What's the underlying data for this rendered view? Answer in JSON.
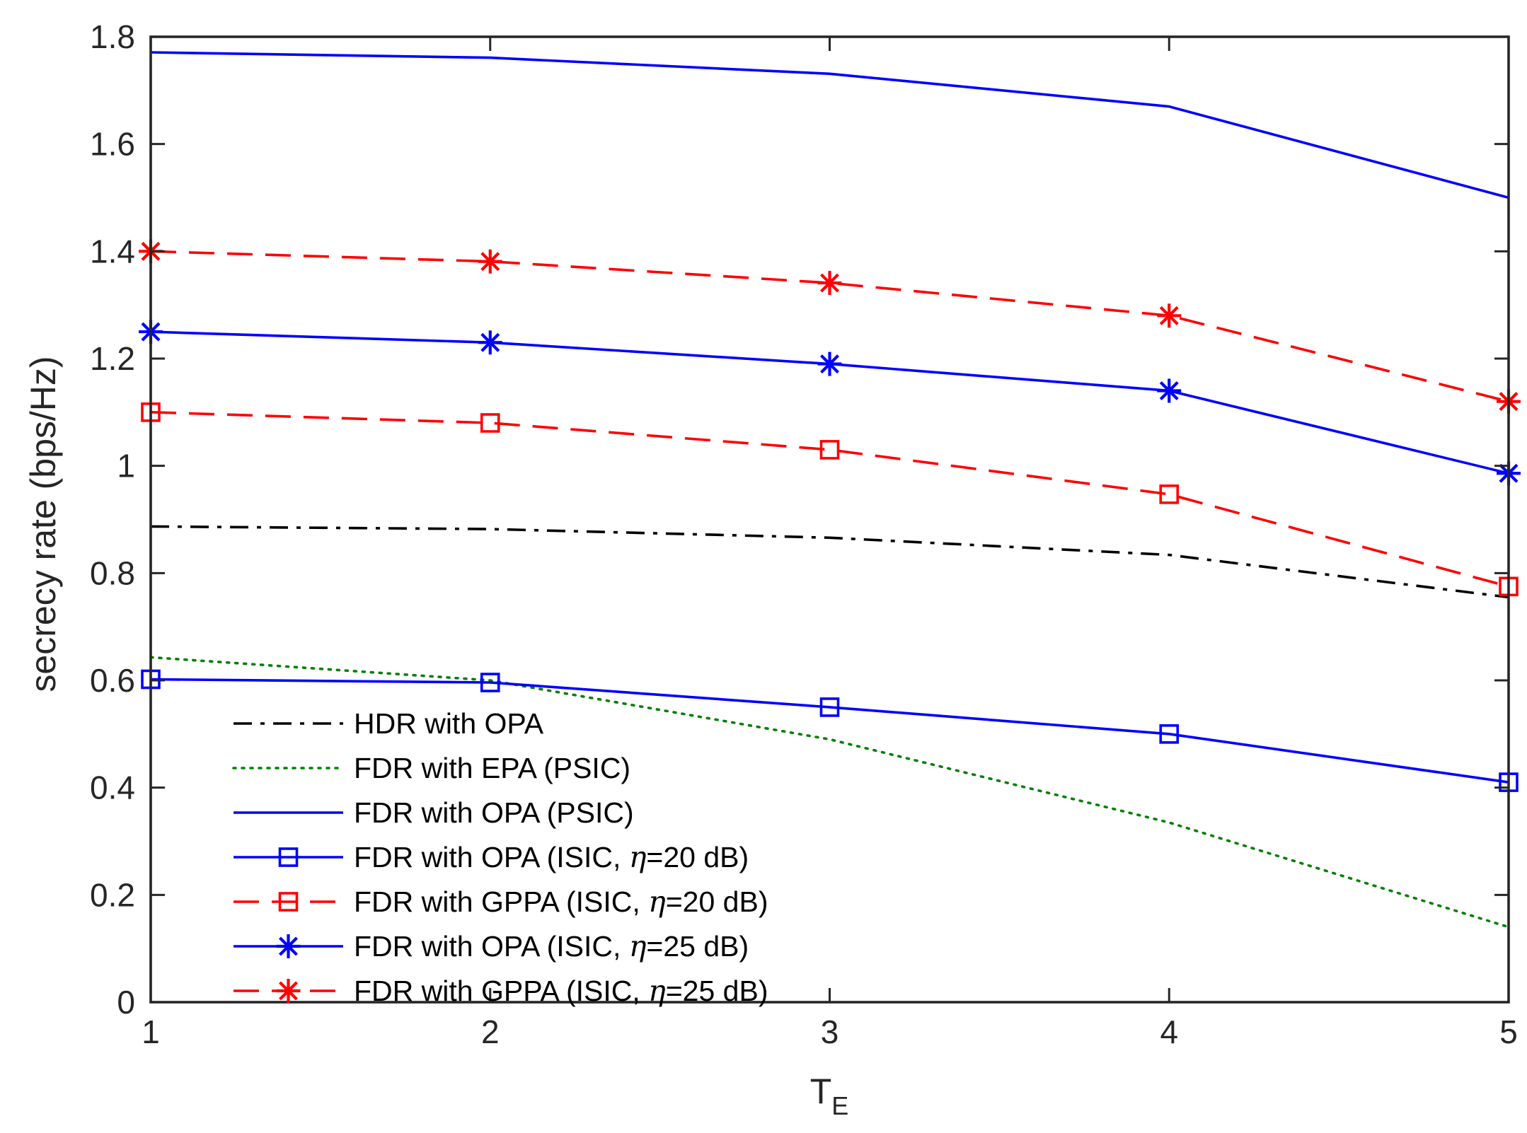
{
  "chart_data": {
    "type": "line",
    "title": "",
    "xlabel": "T",
    "xlabel_subscript": "E",
    "ylabel": "secrecy rate (bps/Hz)",
    "xlim": [
      1,
      5
    ],
    "ylim": [
      0,
      1.8
    ],
    "xticks": [
      1,
      2,
      3,
      4,
      5
    ],
    "xtick_labels": [
      "1",
      "2",
      "3",
      "4",
      "5"
    ],
    "yticks": [
      0,
      0.2,
      0.4,
      0.6,
      0.8,
      1,
      1.2,
      1.4,
      1.6,
      1.8
    ],
    "ytick_labels": [
      "0",
      "0.2",
      "0.4",
      "0.6",
      "0.8",
      "1",
      "1.2",
      "1.4",
      "1.6",
      "1.8"
    ],
    "grid": false,
    "legend_position": "bottom-left",
    "x": [
      1,
      2,
      3,
      4,
      5
    ],
    "series": [
      {
        "name": "HDR with OPA",
        "legend_text": [
          "HDR with OPA"
        ],
        "values": [
          0.887,
          0.882,
          0.866,
          0.834,
          0.755
        ],
        "color": "#000000",
        "dash": "dashdot",
        "marker": "none"
      },
      {
        "name": "FDR with EPA (PSIC)",
        "legend_text": [
          "FDR with EPA (PSIC)"
        ],
        "values": [
          0.643,
          0.6,
          0.49,
          0.335,
          0.14
        ],
        "color": "#008000",
        "dash": "dotted",
        "marker": "none"
      },
      {
        "name": "FDR with OPA (PSIC)",
        "legend_text": [
          "FDR with OPA (PSIC)"
        ],
        "values": [
          1.771,
          1.761,
          1.731,
          1.67,
          1.5
        ],
        "color": "#0000ff",
        "dash": "solid",
        "marker": "none"
      },
      {
        "name": "FDR with OPA (ISIC, η=20 dB)",
        "legend_text": [
          "FDR with OPA (ISIC, ",
          "η",
          "=20 dB)"
        ],
        "values": [
          0.602,
          0.596,
          0.55,
          0.5,
          0.41
        ],
        "color": "#0000ff",
        "dash": "solid",
        "marker": "square"
      },
      {
        "name": "FDR with GPPA (ISIC, η=20 dB)",
        "legend_text": [
          "FDR with GPPA (ISIC, ",
          "η",
          "=20 dB)"
        ],
        "values": [
          1.1,
          1.08,
          1.03,
          0.947,
          0.775
        ],
        "color": "#ff0000",
        "dash": "dashed",
        "marker": "square"
      },
      {
        "name": "FDR with OPA (ISIC, η=25 dB)",
        "legend_text": [
          "FDR with OPA (ISIC, ",
          "η",
          "=25 dB)"
        ],
        "values": [
          1.25,
          1.23,
          1.19,
          1.14,
          0.986
        ],
        "color": "#0000ff",
        "dash": "solid",
        "marker": "asterisk"
      },
      {
        "name": "FDR with GPPA (ISIC, η=25 dB)",
        "legend_text": [
          "FDR with GPPA (ISIC, ",
          "η",
          "=25 dB)"
        ],
        "values": [
          1.4,
          1.381,
          1.341,
          1.28,
          1.12
        ],
        "color": "#ff0000",
        "dash": "dashed",
        "marker": "asterisk"
      }
    ]
  }
}
